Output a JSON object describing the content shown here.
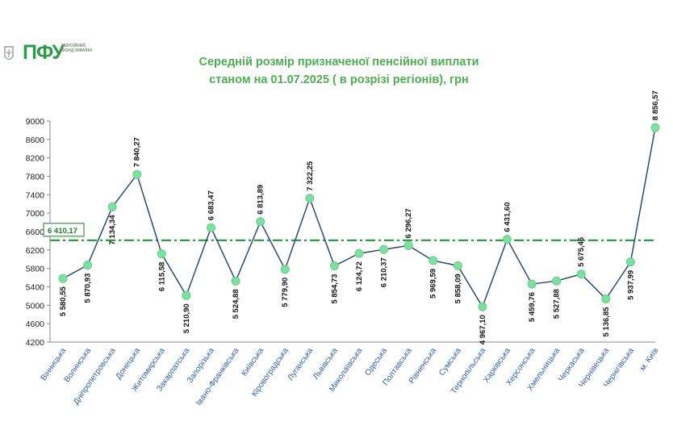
{
  "logo": {
    "abbr": "ПФУ",
    "subtitle": "ПЕНСІЙНИЙ ФОНД УКРАЇНИ"
  },
  "colors": {
    "line": "#2d4b6e",
    "marker": "#7ee0a0",
    "avg_line": "#1f9a3a",
    "title": "#4caf50",
    "category": "#2e5fa8"
  },
  "chart_data": {
    "type": "line",
    "title": "Середній розмір призначеної пенсійної виплати",
    "subtitle": "станом на 01.07.2025 ( в розрізі регіонів), грн",
    "xlabel": "",
    "ylabel": "",
    "ylim": [
      4200,
      9000
    ],
    "yticks": [
      "4200",
      "4600",
      "5000",
      "5400",
      "5800",
      "6200",
      "6600",
      "7000",
      "7400",
      "7800",
      "8200",
      "8600",
      "9000"
    ],
    "grid": false,
    "categories": [
      "Вінницька",
      "Волинська",
      "Дніпропетровська",
      "Донецька",
      "Житомирська",
      "Закарпатська",
      "Запорізька",
      "Івано-Франківська",
      "Київська",
      "Кіровоградська",
      "Луганська",
      "Львівська",
      "Миколаївська",
      "Одеська",
      "Полтавська",
      "Рівненська",
      "Сумська",
      "Тернопільська",
      "Харківська",
      "Херсонська",
      "Хмельницька",
      "Черкаська",
      "Чернівецька",
      "Чернігівська",
      "м. Київ"
    ],
    "values": [
      5580.55,
      5870.93,
      7134.34,
      7840.27,
      6115.58,
      5210.9,
      6683.47,
      5524.88,
      6813.89,
      5779.9,
      7322.25,
      5854.73,
      6124.72,
      6210.37,
      6296.27,
      5969.59,
      5858.09,
      4967.1,
      6431.6,
      5459.76,
      5527.88,
      5675.46,
      5136.85,
      5937.99,
      8856.57
    ],
    "labels": [
      "5 580,55",
      "5 870,93",
      "7 134,34",
      "7 840,27",
      "6 115,58",
      "5 210,90",
      "6 683,47",
      "5 524,88",
      "6 813,89",
      "5 779,90",
      "7 322,25",
      "5 854,73",
      "6 124,72",
      "6 210,37",
      "6 296,27",
      "5 969,59",
      "5 858,09",
      "4 967,10",
      "6 431,60",
      "5 459,76",
      "5 527,88",
      "5 675,46",
      "5 136,85",
      "5 937,99",
      "8 856,57"
    ],
    "average": {
      "value": 6410.17,
      "label": "6 410,17"
    }
  }
}
